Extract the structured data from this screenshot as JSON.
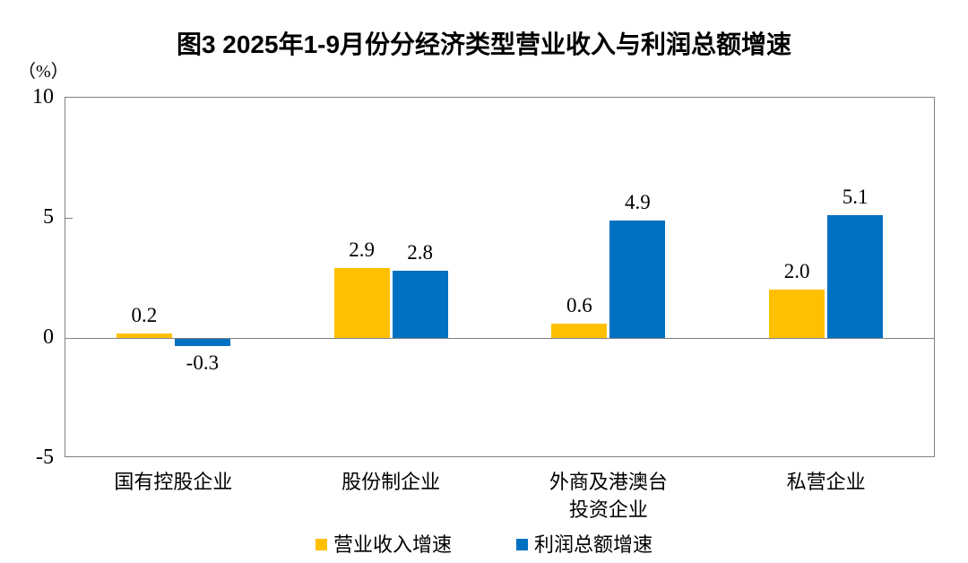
{
  "chart_data": {
    "type": "bar",
    "title": "图3  2025年1-9月份分经济类型营业收入与利润总额增速",
    "unit_label": "（%）",
    "categories": [
      "国有控股企业",
      "股份制企业",
      "外商及港澳台\n投资企业",
      "私营企业"
    ],
    "series": [
      {
        "name": "营业收入增速",
        "color": "#FFC000",
        "values": [
          0.2,
          2.9,
          0.6,
          2.0
        ],
        "labels": [
          "0.2",
          "2.9",
          "0.6",
          "2.0"
        ]
      },
      {
        "name": "利润总额增速",
        "color": "#0070C0",
        "values": [
          -0.3,
          2.8,
          4.9,
          5.1
        ],
        "labels": [
          "-0.3",
          "2.8",
          "4.9",
          "5.1"
        ]
      }
    ],
    "ylim": [
      -5,
      10
    ],
    "yticks": [
      10,
      5,
      0,
      -5
    ],
    "grid": false,
    "legend_position": "bottom",
    "axis_color": "#808080",
    "text_color": "#000000",
    "background_color": "#FFFFFF"
  }
}
